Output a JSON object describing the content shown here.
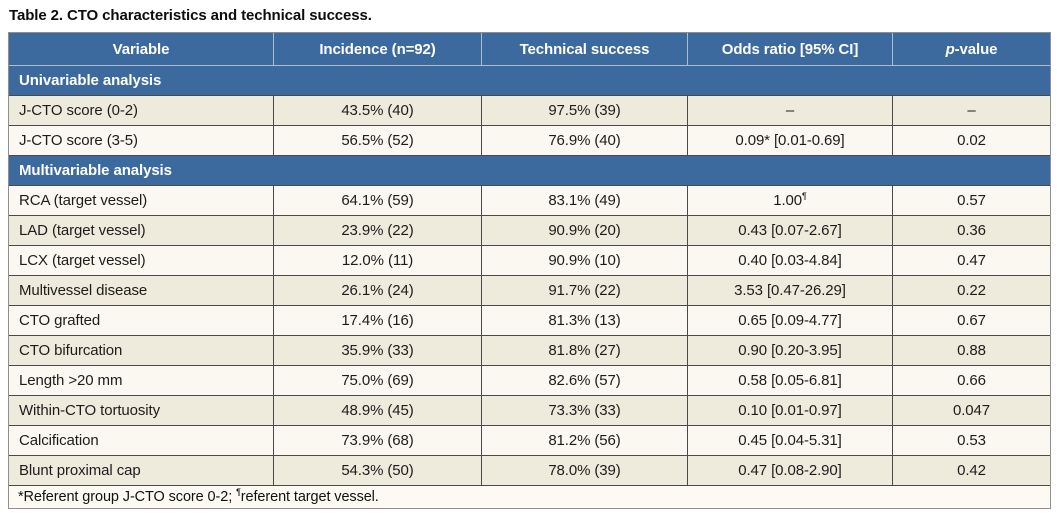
{
  "title": "Table 2. CTO characteristics and technical success.",
  "colors": {
    "header_blue": "#3c6a9e",
    "row_cream": "#eeebdd",
    "row_white": "#faf8f0",
    "grid_dark": "#4a4a4a",
    "grid_light": "#aebccf"
  },
  "table": {
    "columns": [
      {
        "key": "variable",
        "label": "Variable"
      },
      {
        "key": "incidence",
        "label": "Incidence (n=92)"
      },
      {
        "key": "technical_success",
        "label": "Technical success"
      },
      {
        "key": "odds_ratio",
        "label": "Odds ratio [95% CI]"
      },
      {
        "key": "p_value",
        "label_italic": "p",
        "label_rest": "-value"
      }
    ],
    "rows": [
      {
        "type": "section",
        "label": "Univariable analysis"
      },
      {
        "type": "data",
        "variable": "J-CTO score (0-2)",
        "incidence": "43.5% (40)",
        "technical_success": "97.5% (39)",
        "odds_ratio": "–",
        "p_value": "–"
      },
      {
        "type": "data",
        "variable": "J-CTO score (3-5)",
        "incidence": "56.5% (52)",
        "technical_success": "76.9% (40)",
        "odds_ratio": "0.09* [0.01-0.69]",
        "p_value": "0.02"
      },
      {
        "type": "section",
        "label": "Multivariable analysis"
      },
      {
        "type": "data",
        "variable": "RCA (target vessel)",
        "incidence": "64.1% (59)",
        "technical_success": "83.1% (49)",
        "odds_ratio": "1.00¶",
        "p_value": "0.57"
      },
      {
        "type": "data",
        "variable": "LAD (target vessel)",
        "incidence": "23.9% (22)",
        "technical_success": "90.9% (20)",
        "odds_ratio": "0.43 [0.07-2.67]",
        "p_value": "0.36"
      },
      {
        "type": "data",
        "variable": "LCX (target vessel)",
        "incidence": "12.0% (11)",
        "technical_success": "90.9% (10)",
        "odds_ratio": "0.40 [0.03-4.84]",
        "p_value": "0.47"
      },
      {
        "type": "data",
        "variable": "Multivessel disease",
        "incidence": "26.1% (24)",
        "technical_success": "91.7% (22)",
        "odds_ratio": "3.53 [0.47-26.29]",
        "p_value": "0.22"
      },
      {
        "type": "data",
        "variable": "CTO grafted",
        "incidence": "17.4% (16)",
        "technical_success": "81.3% (13)",
        "odds_ratio": "0.65 [0.09-4.77]",
        "p_value": "0.67"
      },
      {
        "type": "data",
        "variable": "CTO bifurcation",
        "incidence": "35.9% (33)",
        "technical_success": "81.8% (27)",
        "odds_ratio": "0.90 [0.20-3.95]",
        "p_value": "0.88"
      },
      {
        "type": "data",
        "variable": "Length >20 mm",
        "incidence": "75.0% (69)",
        "technical_success": "82.6% (57)",
        "odds_ratio": "0.58 [0.05-6.81]",
        "p_value": "0.66"
      },
      {
        "type": "data",
        "variable": "Within-CTO tortuosity",
        "incidence": "48.9% (45)",
        "technical_success": "73.3% (33)",
        "odds_ratio": "0.10 [0.01-0.97]",
        "p_value": "0.047"
      },
      {
        "type": "data",
        "variable": "Calcification",
        "incidence": "73.9% (68)",
        "technical_success": "81.2% (56)",
        "odds_ratio": "0.45 [0.04-5.31]",
        "p_value": "0.53"
      },
      {
        "type": "data",
        "variable": "Blunt proximal cap",
        "incidence": "54.3% (50)",
        "technical_success": "78.0% (39)",
        "odds_ratio": "0.47 [0.08-2.90]",
        "p_value": "0.42"
      }
    ],
    "footnote": "*Referent group J-CTO score 0-2; ¶referent target vessel."
  }
}
